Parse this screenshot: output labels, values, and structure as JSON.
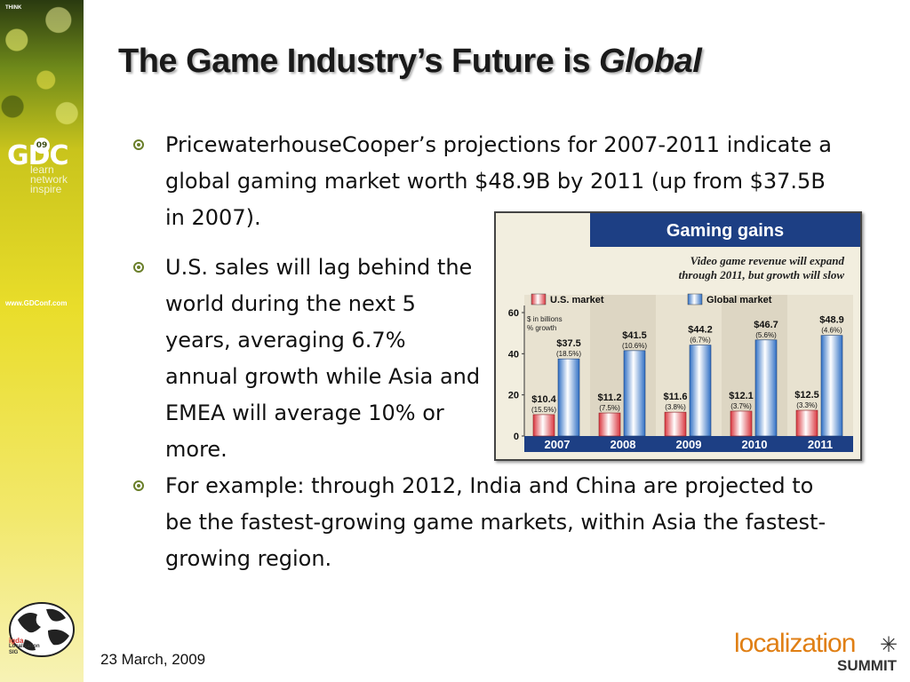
{
  "slide": {
    "title_main": "The Game Industry’s Future is ",
    "title_emph": "Global",
    "date": "23 March, 2009"
  },
  "bullets": [
    "PricewaterhouseCooper’s projections for 2007-2011 indicate a global gaming market worth $48.9B by 2011 (up from $37.5B in 2007).",
    "U.S. sales will lag behind the world during the next 5 years, averaging 6.7% annual growth while Asia and EMEA will average 10% or more.",
    "For example: through 2012, India and China are projected to be the fastest-growing game markets, within Asia the fastest-growing region."
  ],
  "sidebar": {
    "think_text": "THINK",
    "gdc": "GDC",
    "gdc_year": "09",
    "tagline": [
      "learn",
      "network",
      "inspire"
    ],
    "url": "www.GDConf.com",
    "igda_lines": [
      "igda",
      "Localization",
      "SIG"
    ]
  },
  "footer": {
    "brand": "localization",
    "brand_sub": "SUMMIT",
    "star_glyph": "✳"
  },
  "colors": {
    "us_bar": "#d9363e",
    "global_bar": "#2f6fc4",
    "header_bg": "#1d3f84"
  },
  "chart_data": {
    "type": "bar",
    "title": "Gaming gains",
    "subtitle": "Video game revenue will expand through 2011, but growth will slow",
    "unit_note": "$ in billions\n% growth",
    "categories": [
      "2007",
      "2008",
      "2009",
      "2010",
      "2011"
    ],
    "ylim": [
      0,
      60
    ],
    "yticks": [
      0,
      20,
      40,
      60
    ],
    "grid": false,
    "legend_position": "top",
    "series": [
      {
        "name": "U.S. market",
        "values": [
          10.4,
          11.2,
          11.6,
          12.1,
          12.5
        ],
        "labels": [
          "$10.4",
          "$11.2",
          "$11.6",
          "$12.1",
          "$12.5"
        ],
        "growth": [
          "(15.5%)",
          "(7.5%)",
          "(3.8%)",
          "(3.7%)",
          "(3.3%)"
        ]
      },
      {
        "name": "Global market",
        "values": [
          37.5,
          41.5,
          44.2,
          46.7,
          48.9
        ],
        "labels": [
          "$37.5",
          "$41.5",
          "$44.2",
          "$46.7",
          "$48.9"
        ],
        "growth": [
          "(18.5%)",
          "(10.6%)",
          "(6.7%)",
          "(5.6%)",
          "(4.6%)"
        ]
      }
    ]
  }
}
